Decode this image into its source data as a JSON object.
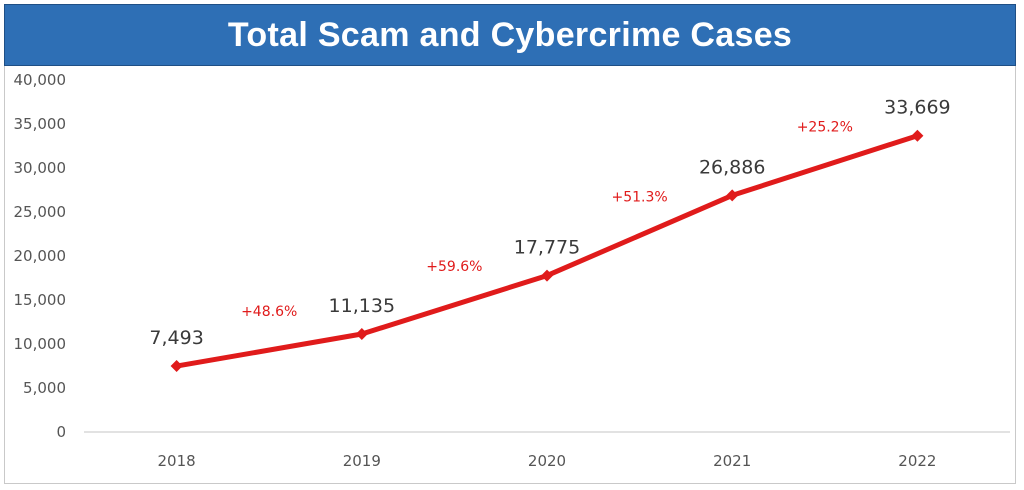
{
  "chart_data": {
    "type": "line",
    "title": "Total Scam and Cybercrime Cases",
    "categories": [
      "2018",
      "2019",
      "2020",
      "2021",
      "2022"
    ],
    "series": [
      {
        "values": [
          7493,
          11135,
          17775,
          26886,
          33669
        ],
        "color": "#e01b1b",
        "marker": "diamond"
      }
    ],
    "data_labels": [
      "7,493",
      "11,135",
      "17,775",
      "26,886",
      "33,669"
    ],
    "growth_labels": [
      "+48.6%",
      "+59.6%",
      "+51.3%",
      "+25.2%"
    ],
    "y_ticks": [
      "0",
      "5,000",
      "10,000",
      "15,000",
      "20,000",
      "25,000",
      "30,000",
      "35,000",
      "40,000"
    ],
    "ylim": [
      0,
      40000
    ],
    "ystep": 5000,
    "grid": false,
    "legend": "none",
    "colors": {
      "title_background": "#2e6fb5",
      "title_text": "#ffffff",
      "line": "#e01b1b",
      "growth_text": "#e01b1b",
      "axis": "#d0d0d0"
    }
  }
}
